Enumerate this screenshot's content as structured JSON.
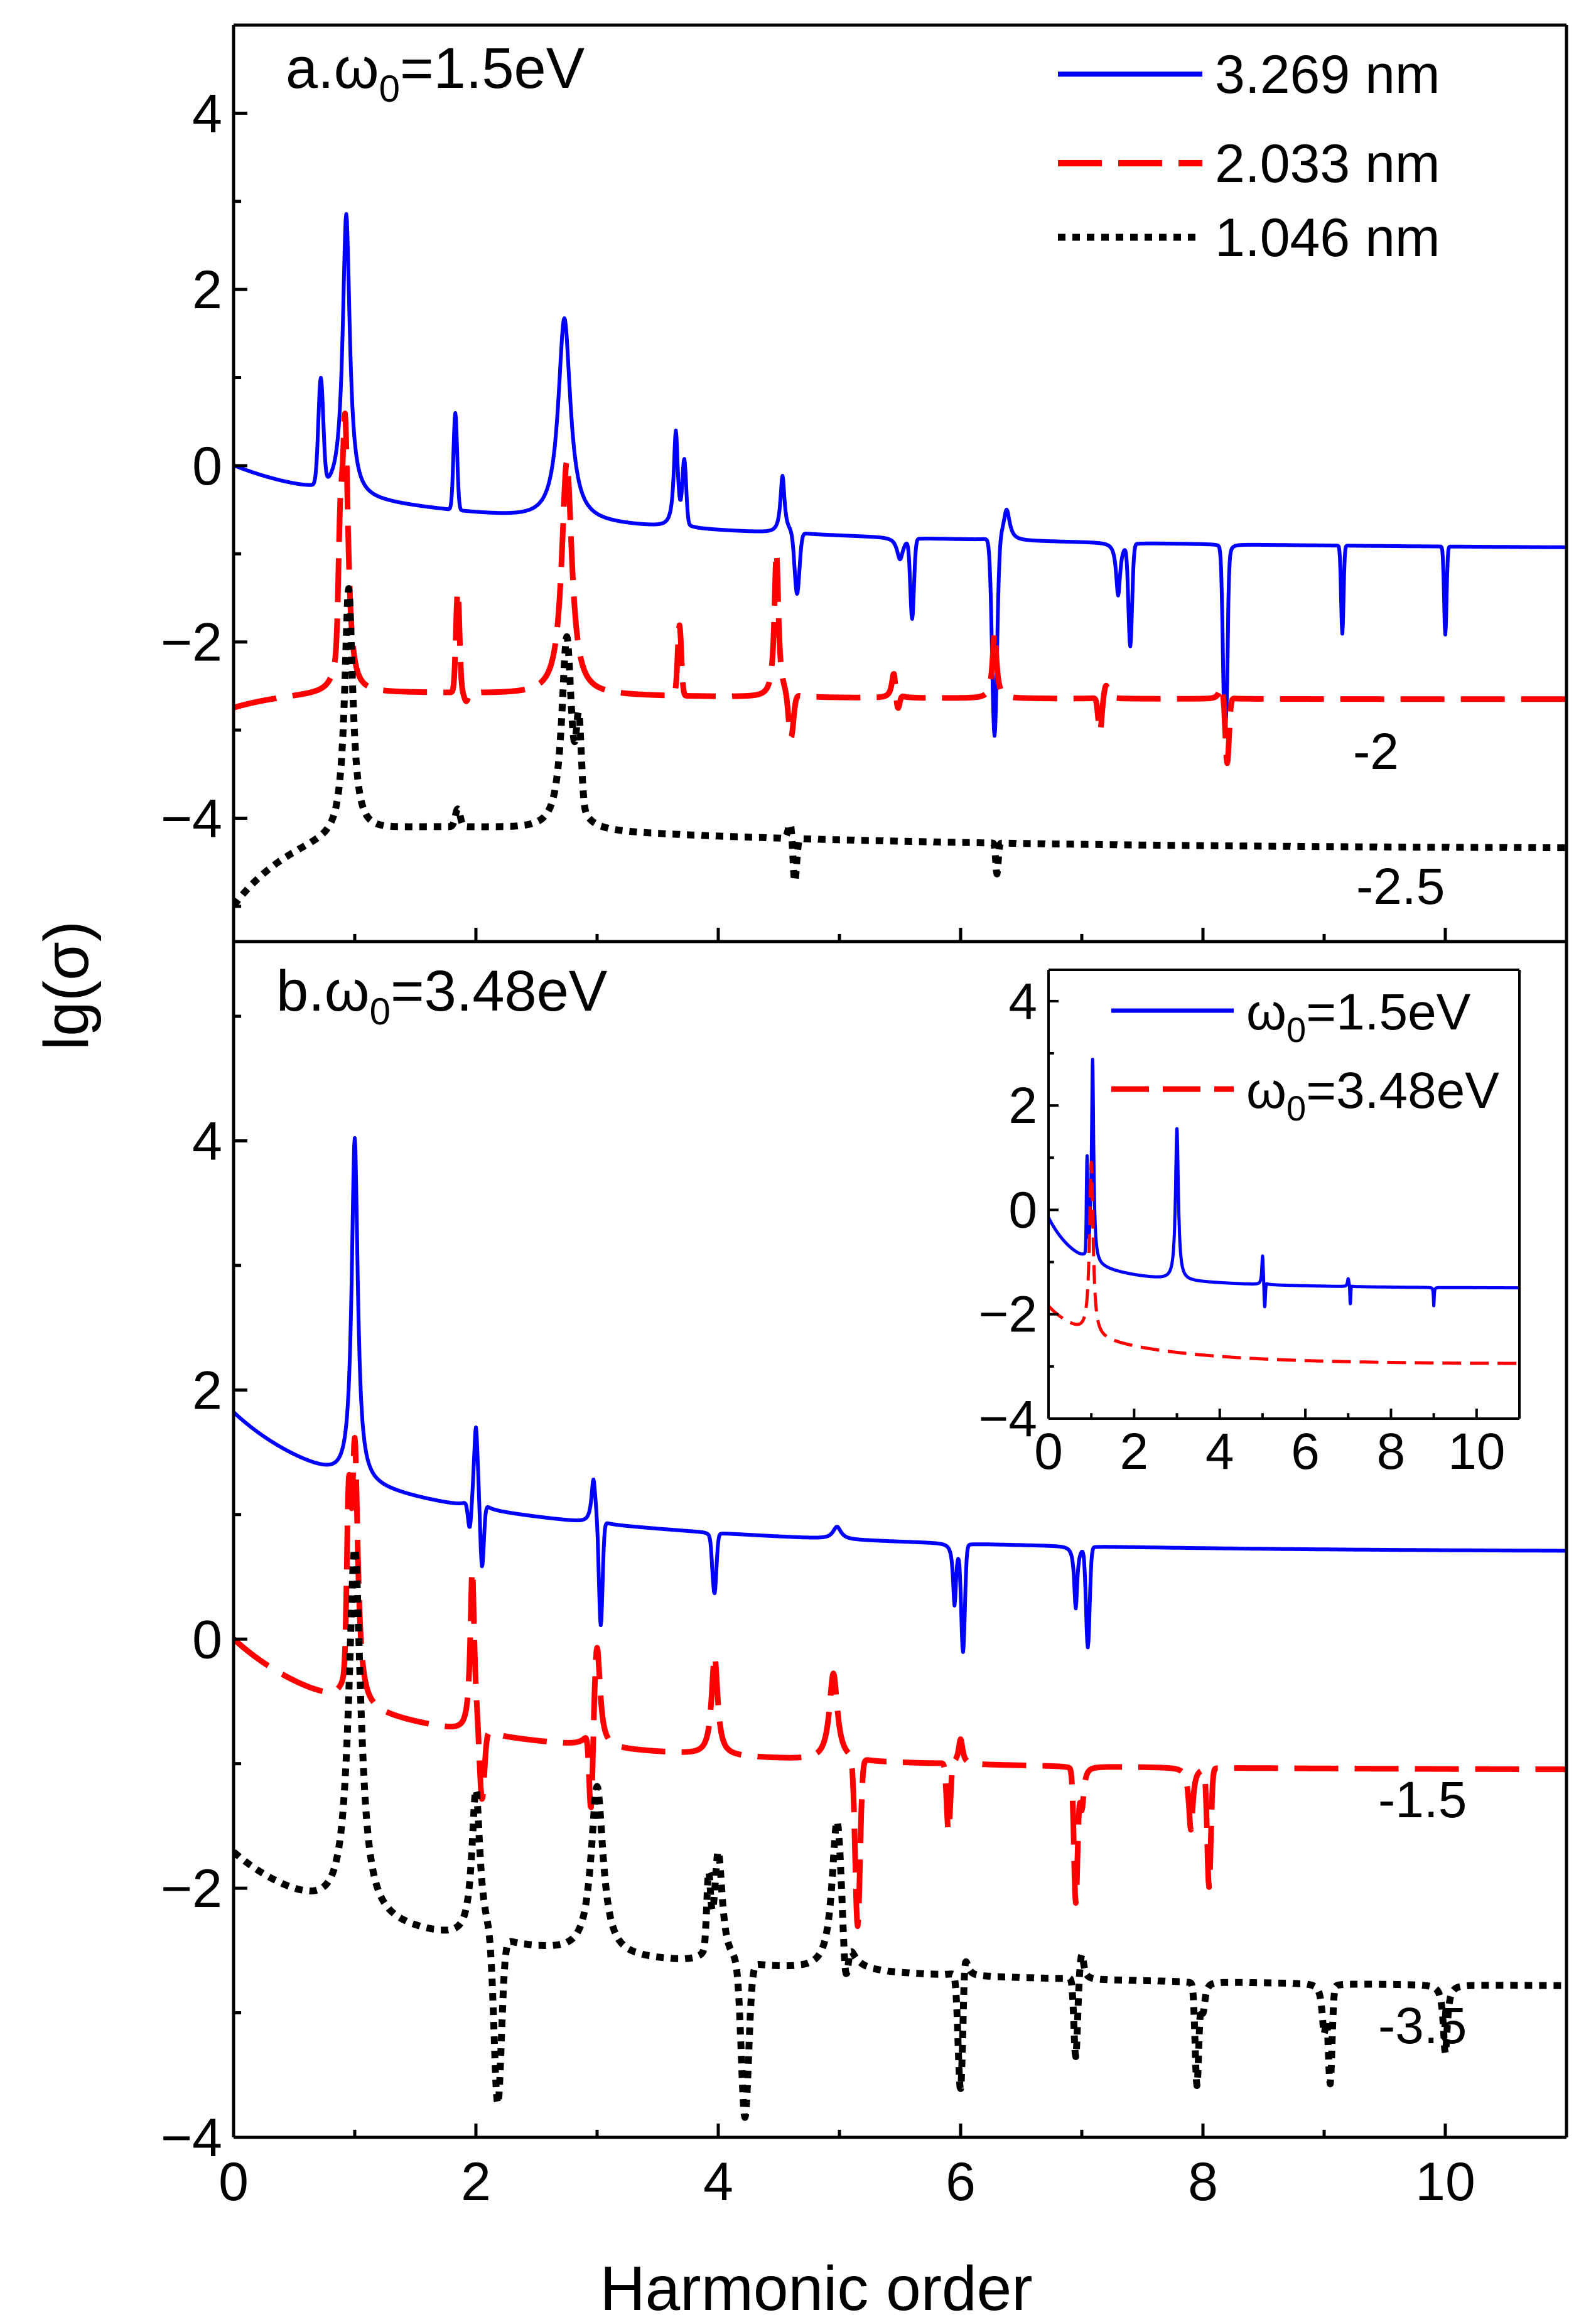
{
  "colors": {
    "blue": "#0000ff",
    "red": "#ff0000",
    "black": "#000000",
    "axis": "#000000"
  },
  "chart_data": [
    {
      "id": "panel_a",
      "type": "line",
      "title": "",
      "annotation": "a.ω0=1.5eV",
      "annotation_parts": {
        "prefix": "a.ω",
        "sub": "0",
        "suffix": "=1.5eV"
      },
      "xlabel": "Harmonic order",
      "ylabel": "lg(σ)",
      "xlim": [
        0,
        11
      ],
      "ylim": [
        -5.4,
        5
      ],
      "yticks": [
        -4,
        -2,
        0,
        2,
        4
      ],
      "ytick_labels": [
        "−4",
        "−2",
        "0",
        "2",
        "4"
      ],
      "legend_position": "top-right",
      "offset_labels": [
        "-2",
        "-2.5"
      ],
      "series": [
        {
          "name": "3.269 nm",
          "color": "#0000ff",
          "style": "solid",
          "base": -0.2,
          "baseB": -0.95,
          "decay": 3.2,
          "start": 0,
          "lor": [
            [
              0.93,
              3.0,
              0.035
            ],
            [
              2.73,
              2.1,
              0.06
            ],
            [
              3.65,
              0.9,
              0.02
            ],
            [
              4.53,
              0.45,
              0.02
            ],
            [
              5.5,
              -0.45,
              0.03
            ],
            [
              6.38,
              0.15,
              0.03
            ],
            [
              7.3,
              -0.8,
              0.02
            ],
            [
              8.2,
              -0.95,
              0.01
            ]
          ],
          "disp": [
            [
              0.72,
              1.0,
              0.02
            ],
            [
              1.83,
              0.9,
              0.015
            ],
            [
              3.72,
              0.5,
              0.015
            ],
            [
              4.65,
              -0.9,
              0.02
            ],
            [
              5.6,
              -1.1,
              0.015
            ],
            [
              6.28,
              -2.45,
              0.02
            ],
            [
              7.4,
              -1.35,
              0.015
            ],
            [
              8.18,
              -2.2,
              0.015
            ],
            [
              9.15,
              -1.2,
              0.01
            ],
            [
              10.0,
              -1.2,
              0.01
            ]
          ]
        },
        {
          "name": "2.033 nm",
          "color": "#ff0000",
          "style": "dash",
          "base": -2.45,
          "baseB": -2.65,
          "decay": 2.0,
          "start": -2.75,
          "lor": [
            [
              0.92,
              0.7,
              0.03
            ],
            [
              2.75,
              0.2,
              0.05
            ],
            [
              4.48,
              -0.8,
              0.02
            ],
            [
              5.45,
              -2.15,
              0.02
            ],
            [
              6.28,
              -1.7,
              0.02
            ],
            [
              7.2,
              -2.3,
              0.02
            ],
            [
              8.15,
              -2.3,
              0.02
            ]
          ],
          "disp": [
            [
              0.88,
              -1.4,
              0.015
            ],
            [
              1.85,
              -1.3,
              0.015
            ],
            [
              1.92,
              -2.55,
              0.015
            ],
            [
              3.68,
              -1.65,
              0.015
            ],
            [
              4.6,
              -2.95,
              0.02
            ],
            [
              5.48,
              -2.65,
              0.015
            ],
            [
              7.15,
              -2.85,
              0.015
            ],
            [
              8.2,
              -3.2,
              0.015
            ]
          ]
        },
        {
          "name": "1.046 nm",
          "color": "#000000",
          "style": "dot",
          "base": -3.8,
          "baseB": -4.35,
          "decay": 3.0,
          "start": -5.0,
          "lor": [
            [
              0.95,
              -1.0,
              0.04
            ],
            [
              2.75,
              -1.6,
              0.05
            ]
          ],
          "disp": [
            [
              1.85,
              -3.6,
              0.02
            ],
            [
              2.85,
              -2.9,
              0.02
            ],
            [
              4.6,
              -3.6,
              0.02
            ],
            [
              4.63,
              -4.35,
              0.015
            ],
            [
              6.3,
              -4.15,
              0.01
            ]
          ]
        }
      ]
    },
    {
      "id": "panel_b",
      "type": "line",
      "title": "",
      "annotation": "b.ω0=3.48eV",
      "annotation_parts": {
        "prefix": "b.ω",
        "sub": "0",
        "suffix": "=3.48eV"
      },
      "xlabel": "Harmonic order",
      "ylabel": "lg(σ)",
      "xlim": [
        0,
        11
      ],
      "ylim": [
        -4,
        5.6
      ],
      "yticks": [
        -4,
        -2,
        0,
        2,
        4
      ],
      "ytick_labels": [
        "−4",
        "−2",
        "0",
        "2",
        "4"
      ],
      "xticks": [
        0,
        2,
        4,
        6,
        8,
        10
      ],
      "xtick_labels": [
        "0",
        "2",
        "4",
        "6",
        "8",
        "10"
      ],
      "offset_labels": [
        "-1.5",
        "-3.5"
      ],
      "series": [
        {
          "name": "3.269 nm",
          "color": "#0000ff",
          "style": "solid",
          "base": 1.45,
          "baseB": 0.7,
          "decay": 2.5,
          "start": 1.82,
          "lor": [
            [
              1.0,
              4.2,
              0.03
            ],
            [
              2.0,
              2.1,
              0.02
            ],
            [
              2.97,
              1.8,
              0.02
            ],
            [
              3.95,
              1.35,
              0.015
            ],
            [
              4.98,
              1.55,
              0.04
            ],
            [
              5.95,
              0.95,
              0.015
            ],
            [
              6.95,
              0.95,
              0.015
            ]
          ],
          "disp": [
            [
              1.95,
              1.2,
              0.015
            ],
            [
              2.05,
              0.9,
              0.015
            ],
            [
              3.03,
              0.6,
              0.015
            ],
            [
              3.97,
              1.0,
              0.015
            ],
            [
              6.02,
              0.6,
              0.015
            ],
            [
              7.05,
              0.65,
              0.015
            ]
          ]
        },
        {
          "name": "2.033 nm",
          "color": "#ff0000",
          "style": "dash",
          "base": -0.35,
          "baseB": -1.05,
          "decay": 2.2,
          "start": 0.0,
          "lor": [
            [
              1.0,
              1.8,
              0.03
            ],
            [
              1.97,
              0.95,
              0.02
            ],
            [
              3.0,
              0.45,
              0.03
            ],
            [
              3.97,
              0.45,
              0.03
            ],
            [
              4.95,
              0.35,
              0.04
            ],
            [
              6.0,
              -0.15,
              0.02
            ],
            [
              7.0,
              -0.7,
              0.02
            ],
            [
              7.9,
              -0.85,
              0.02
            ]
          ],
          "disp": [
            [
              0.95,
              0.9,
              0.015
            ],
            [
              2.05,
              -0.95,
              0.02
            ],
            [
              2.95,
              -1.05,
              0.015
            ],
            [
              5.15,
              -1.7,
              0.02
            ],
            [
              5.9,
              -0.9,
              0.015
            ],
            [
              6.95,
              -1.4,
              0.015
            ],
            [
              8.05,
              -1.3,
              0.015
            ]
          ]
        },
        {
          "name": "1.046 nm",
          "color": "#000000",
          "style": "dot",
          "base": -2.1,
          "baseB": -2.8,
          "decay": 3.0,
          "start": -1.72,
          "lor": [
            [
              1.0,
              0.85,
              0.06
            ],
            [
              2.0,
              -0.9,
              0.04
            ],
            [
              3.0,
              -0.75,
              0.06
            ],
            [
              4.0,
              -1.2,
              0.04
            ],
            [
              4.98,
              -0.9,
              0.05
            ],
            [
              6.03,
              -1.8,
              0.02
            ],
            [
              7.0,
              -1.9,
              0.02
            ],
            [
              8.0,
              -2.35,
              0.02
            ],
            [
              9.0,
              -2.5,
              0.02
            ],
            [
              10.0,
              -2.65,
              0.02
            ]
          ],
          "disp": [
            [
              2.18,
              -3.45,
              0.03
            ],
            [
              3.92,
              -1.55,
              0.015
            ],
            [
              4.22,
              -3.35,
              0.03
            ],
            [
              5.05,
              -2.5,
              0.02
            ],
            [
              6.0,
              -3.1,
              0.02
            ],
            [
              6.95,
              -2.75,
              0.015
            ],
            [
              7.95,
              -2.9,
              0.015
            ],
            [
              9.05,
              -2.85,
              0.015
            ]
          ]
        }
      ]
    },
    {
      "id": "inset",
      "type": "line",
      "title": "",
      "xlabel": "",
      "ylabel": "",
      "xlim": [
        0,
        11
      ],
      "ylim": [
        -4,
        4.6
      ],
      "xticks": [
        0,
        2,
        4,
        6,
        8,
        10
      ],
      "xtick_labels": [
        "0",
        "2",
        "4",
        "6",
        "8",
        "10"
      ],
      "yticks": [
        -4,
        -2,
        0,
        2,
        4
      ],
      "ytick_labels": [
        "−4",
        "−2",
        "0",
        "2",
        "4"
      ],
      "legend_position": "top-right",
      "series": [
        {
          "name": "ω0=1.5eV",
          "label_parts": {
            "prefix": "ω",
            "sub": "0",
            "suffix": "=1.5eV"
          },
          "color": "#0000ff",
          "style": "solid",
          "base": -1.0,
          "baseB": -1.5,
          "decay": 2.5,
          "start": -0.15,
          "lor": [
            [
              1.03,
              2.9,
              0.03
            ],
            [
              3.0,
              1.9,
              0.04
            ],
            [
              5.0,
              -0.45,
              0.02
            ],
            [
              7.0,
              -0.85,
              0.02
            ],
            [
              9.0,
              -1.35,
              0.01
            ]
          ],
          "disp": [
            [
              0.9,
              0.8,
              0.015
            ],
            [
              5.05,
              -1.5,
              0.015
            ],
            [
              7.05,
              -1.35,
              0.01
            ]
          ]
        },
        {
          "name": "ω0=3.48eV",
          "label_parts": {
            "prefix": "ω",
            "sub": "0",
            "suffix": "=3.48eV"
          },
          "color": "#ff0000",
          "style": "dash",
          "base": -2.2,
          "baseB": -2.95,
          "decay": 2.4,
          "start": -1.85,
          "lor": [
            [
              1.0,
              1.1,
              0.05
            ]
          ],
          "disp": []
        }
      ]
    }
  ]
}
